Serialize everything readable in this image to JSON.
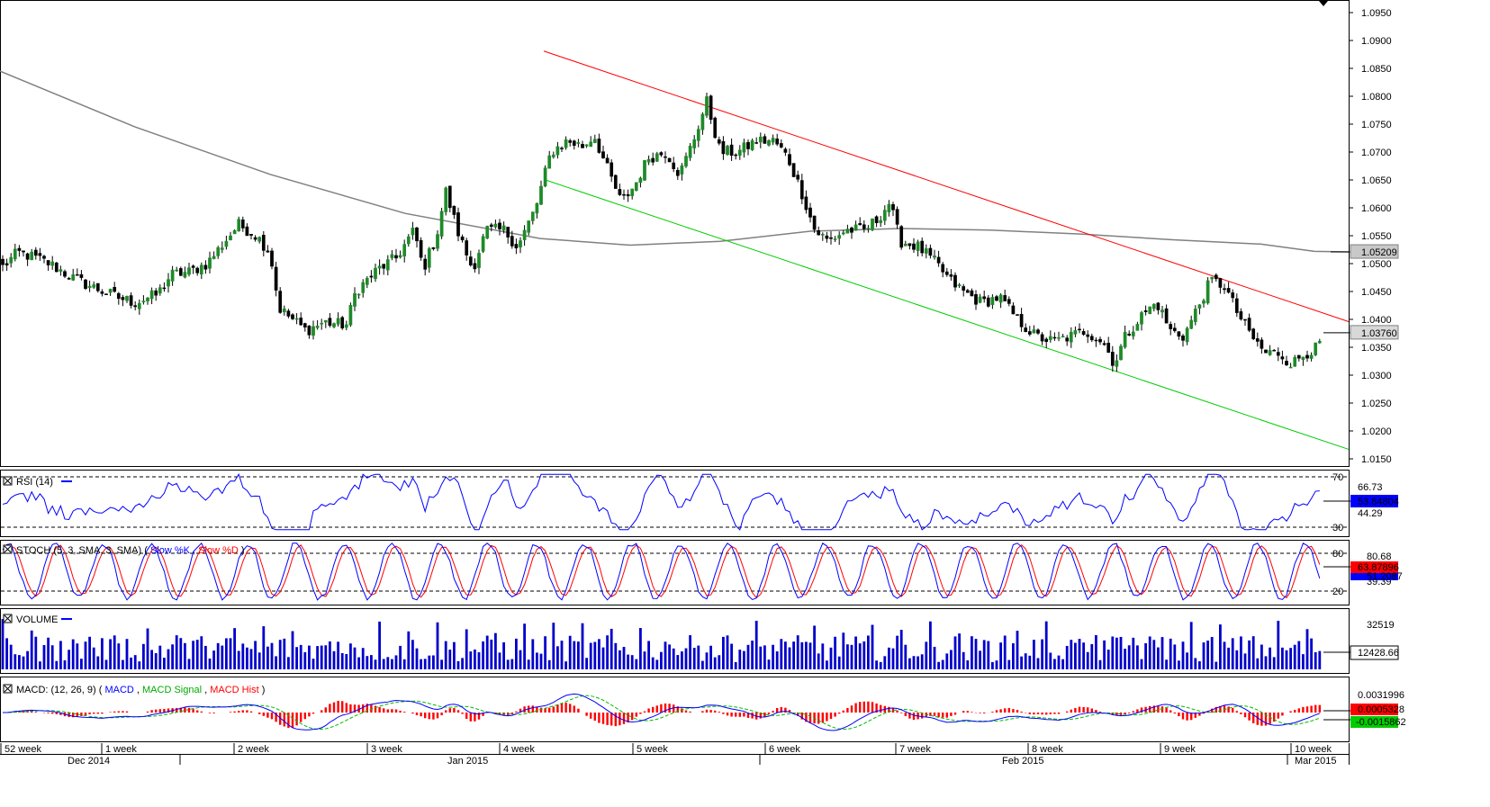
{
  "chart_data": {
    "type": "candlestick",
    "price_axis": {
      "ticks": [
        "1.0950",
        "1.0900",
        "1.0850",
        "1.0800",
        "1.0750",
        "1.0700",
        "1.0650",
        "1.0600",
        "1.0550",
        "1.0500",
        "1.0450",
        "1.0400",
        "1.0350",
        "1.0300",
        "1.0250",
        "1.0200",
        "1.0150"
      ],
      "range": [
        1.0137,
        1.0975
      ],
      "ma_value": "1.05209",
      "last_price": "1.03760"
    },
    "x_axis": {
      "week_labels": [
        "52 week",
        "1 week",
        "2 week",
        "3 week",
        "4 week",
        "5 week",
        "6 week",
        "7 week",
        "8 week",
        "9 week",
        "10 week"
      ],
      "month_labels": [
        "Dec 2014",
        "Jan 2015",
        "Feb 2015",
        "Mar 2015"
      ]
    },
    "candle_keypoints": [
      [
        0,
        1.049
      ],
      [
        20,
        1.052
      ],
      [
        40,
        1.051
      ],
      [
        55,
        1.05
      ],
      [
        80,
        1.0475
      ],
      [
        100,
        1.046
      ],
      [
        130,
        1.044
      ],
      [
        150,
        1.043
      ],
      [
        175,
        1.0445
      ],
      [
        190,
        1.048
      ],
      [
        210,
        1.0485
      ],
      [
        230,
        1.05
      ],
      [
        250,
        1.054
      ],
      [
        265,
        1.057
      ],
      [
        285,
        1.055
      ],
      [
        300,
        1.052
      ],
      [
        310,
        1.042
      ],
      [
        325,
        1.04
      ],
      [
        340,
        1.038
      ],
      [
        360,
        1.0395
      ],
      [
        385,
        1.039
      ],
      [
        395,
        1.045
      ],
      [
        420,
        1.049
      ],
      [
        440,
        1.051
      ],
      [
        460,
        1.056
      ],
      [
        470,
        1.049
      ],
      [
        485,
        1.055
      ],
      [
        495,
        1.063
      ],
      [
        510,
        1.055
      ],
      [
        525,
        1.049
      ],
      [
        540,
        1.056
      ],
      [
        560,
        1.056
      ],
      [
        575,
        1.053
      ],
      [
        595,
        1.06
      ],
      [
        612,
        1.07
      ],
      [
        630,
        1.072
      ],
      [
        648,
        1.071
      ],
      [
        660,
        1.073
      ],
      [
        672,
        1.068
      ],
      [
        690,
        1.061
      ],
      [
        705,
        1.064
      ],
      [
        720,
        1.069
      ],
      [
        740,
        1.07
      ],
      [
        755,
        1.066
      ],
      [
        770,
        1.072
      ],
      [
        785,
        1.079
      ],
      [
        800,
        1.07
      ],
      [
        820,
        1.07
      ],
      [
        840,
        1.072
      ],
      [
        860,
        1.072
      ],
      [
        875,
        1.069
      ],
      [
        890,
        1.063
      ],
      [
        905,
        1.056
      ],
      [
        920,
        1.054
      ],
      [
        940,
        1.056
      ],
      [
        960,
        1.056
      ],
      [
        975,
        1.058
      ],
      [
        988,
        1.061
      ],
      [
        1000,
        1.054
      ],
      [
        1020,
        1.053
      ],
      [
        1040,
        1.05
      ],
      [
        1055,
        1.047
      ],
      [
        1070,
        1.045
      ],
      [
        1090,
        1.043
      ],
      [
        1110,
        1.044
      ],
      [
        1130,
        1.04
      ],
      [
        1150,
        1.037
      ],
      [
        1170,
        1.036
      ],
      [
        1190,
        1.037
      ],
      [
        1205,
        1.038
      ],
      [
        1225,
        1.036
      ],
      [
        1238,
        1.032
      ],
      [
        1250,
        1.037
      ],
      [
        1270,
        1.041
      ],
      [
        1285,
        1.043
      ],
      [
        1300,
        1.038
      ],
      [
        1315,
        1.037
      ],
      [
        1330,
        1.042
      ],
      [
        1345,
        1.047
      ],
      [
        1360,
        1.046
      ],
      [
        1375,
        1.041
      ],
      [
        1390,
        1.037
      ],
      [
        1405,
        1.034
      ],
      [
        1420,
        1.034
      ],
      [
        1435,
        1.032
      ],
      [
        1450,
        1.034
      ],
      [
        1465,
        1.035
      ],
      [
        1470,
        1.0376
      ]
    ],
    "channel": {
      "upper": {
        "from": [
          604,
          1.0881
        ],
        "to": [
          1498,
          1.0396
        ]
      },
      "lower": {
        "from": [
          604,
          1.0651
        ],
        "to": [
          1498,
          1.0167
        ]
      }
    },
    "moving_average": [
      [
        0,
        1.0845
      ],
      [
        150,
        1.0745
      ],
      [
        300,
        1.066
      ],
      [
        450,
        1.059
      ],
      [
        600,
        1.0545
      ],
      [
        700,
        1.0533
      ],
      [
        800,
        1.054
      ],
      [
        900,
        1.0558
      ],
      [
        1000,
        1.0563
      ],
      [
        1100,
        1.056
      ],
      [
        1200,
        1.0553
      ],
      [
        1300,
        1.0543
      ],
      [
        1400,
        1.0535
      ],
      [
        1460,
        1.0522
      ],
      [
        1498,
        1.0521
      ]
    ],
    "rsi": {
      "title": "RSI (14)",
      "levels": [
        "70",
        "30"
      ],
      "right_labels": [
        "66.73",
        "44.29"
      ],
      "current": "53.84804"
    },
    "stoch": {
      "title": "STOCH (5, 3, SMA, 3, SMA)",
      "series_names": [
        "Slow %K",
        "Slow %D"
      ],
      "levels": [
        "80",
        "20"
      ],
      "right_labels": [
        "80.68",
        "39.39"
      ],
      "current_k": "51.2087",
      "current_d": "63.87896"
    },
    "volume": {
      "title": "VOLUME",
      "max_label": "32519",
      "current": "12428.66"
    },
    "macd": {
      "title": "MACD: (12, 26, 9)",
      "series_names": [
        "MACD",
        "MACD Signal",
        "MACD Hist"
      ],
      "top_label": "0.0031996",
      "hist_value": "0.0005328",
      "signal_value": "-0.0015862"
    }
  },
  "colors": {
    "bull": "#1e8a28",
    "bear": "#000000",
    "channel_upper": "#ff0000",
    "channel_lower": "#00cc00",
    "ma": "#808080",
    "rsi": "#0000ff",
    "stoch_k": "#0000ff",
    "stoch_d": "#ff0000",
    "volume": "#0000cc",
    "macd": "#0000ff",
    "macd_signal": "#00bb00",
    "macd_hist": "#ff0000"
  }
}
